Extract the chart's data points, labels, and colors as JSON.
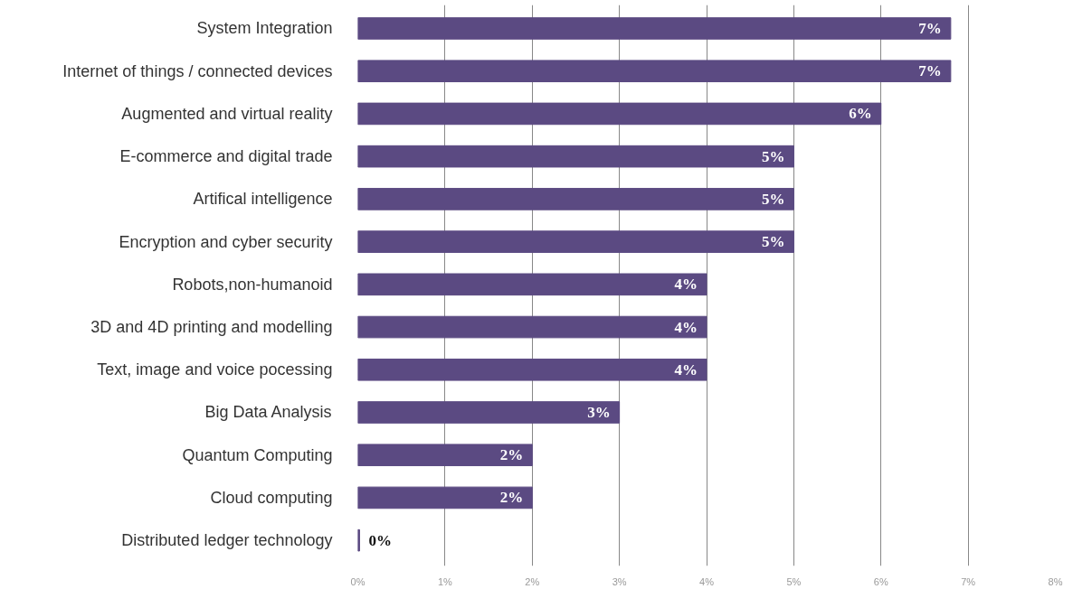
{
  "chart_data": {
    "type": "bar",
    "orientation": "horizontal",
    "categories": [
      "System Integration",
      "Internet of things / connected devices",
      "Augmented and virtual reality",
      "E-commerce and digital trade",
      "Artifical intelligence",
      "Encryption and cyber security",
      "Robots,non-humanoid",
      "3D and 4D printing and modelling",
      "Text, image and voice pocessing",
      "Big Data Analysis",
      "Quantum Computing",
      "Cloud computing",
      "Distributed ledger technology"
    ],
    "values": [
      6.8,
      6.8,
      6.0,
      5.0,
      5.0,
      5.0,
      4.0,
      4.0,
      4.0,
      3.0,
      2.0,
      2.0,
      0.02
    ],
    "value_labels": [
      "7%",
      "7%",
      "6%",
      "5%",
      "5%",
      "5%",
      "4%",
      "4%",
      "4%",
      "3%",
      "2%",
      "2%",
      "0%"
    ],
    "color": "#5b4a82",
    "xlim": [
      0,
      8
    ],
    "xticks": [
      {
        "value": 0,
        "label": "0%"
      },
      {
        "value": 1,
        "label": "1%"
      },
      {
        "value": 2,
        "label": "2%"
      },
      {
        "value": 3,
        "label": "3%"
      },
      {
        "value": 4,
        "label": "4%"
      },
      {
        "value": 5,
        "label": "5%"
      },
      {
        "value": 6,
        "label": "6%"
      },
      {
        "value": 7,
        "label": "7%"
      },
      {
        "value": 8,
        "label": "8%"
      }
    ],
    "grid": "x"
  }
}
